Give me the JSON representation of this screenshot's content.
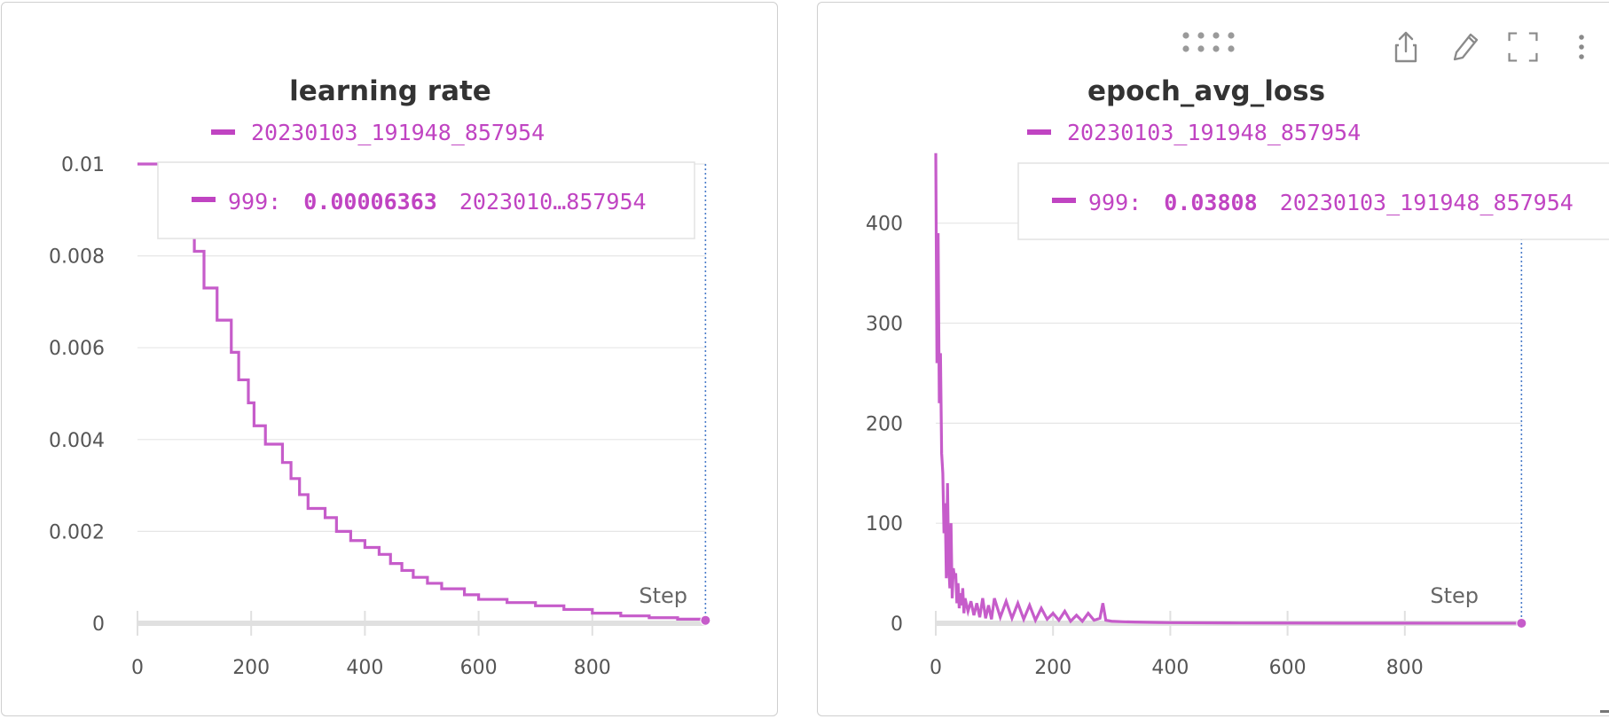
{
  "colors": {
    "series": "#c65cca",
    "legend": "#c044c2",
    "grid": "#e6e6e6",
    "axis": "#e0e0e0",
    "text": "#555555",
    "dotted": "#4a7cc9"
  },
  "icons": [
    "drag-handle-icon",
    "share-icon",
    "edit-icon",
    "fullscreen-icon",
    "more-icon",
    "resize-corner-icon"
  ],
  "panels": [
    {
      "title": "learning rate",
      "legend": "20230103_191948_857954",
      "tooltip": {
        "step": "999:",
        "value": "0.00006363",
        "run": "2023010…857954"
      },
      "step_label": "Step"
    },
    {
      "title": "epoch_avg_loss",
      "legend": "20230103_191948_857954",
      "tooltip": {
        "step": "999:",
        "value": "0.03808",
        "run": "20230103_191948_857954"
      },
      "step_label": "Step"
    }
  ],
  "chart_data": [
    {
      "type": "line",
      "title": "learning rate",
      "xlabel": "Step",
      "ylabel": "",
      "xlim": [
        0,
        1000
      ],
      "ylim": [
        0,
        0.01
      ],
      "x_ticks": [
        "0",
        "200",
        "400",
        "600",
        "800"
      ],
      "y_ticks": [
        "0",
        "0.002",
        "0.004",
        "0.006",
        "0.008",
        "0.01"
      ],
      "grid": true,
      "legend_position": "top",
      "series": [
        {
          "name": "20230103_191948_857954",
          "step_shape": true,
          "x": [
            0,
            67,
            100,
            117,
            140,
            165,
            178,
            195,
            205,
            225,
            255,
            270,
            285,
            300,
            330,
            350,
            375,
            400,
            425,
            445,
            465,
            485,
            510,
            535,
            575,
            600,
            650,
            700,
            750,
            800,
            850,
            900,
            950,
            999
          ],
          "y": [
            0.01,
            0.0092,
            0.0081,
            0.0073,
            0.0066,
            0.0059,
            0.0053,
            0.0048,
            0.0043,
            0.0039,
            0.0035,
            0.00315,
            0.0028,
            0.0025,
            0.0023,
            0.002,
            0.0018,
            0.00165,
            0.0015,
            0.0013,
            0.00115,
            0.001,
            0.00087,
            0.00075,
            0.00062,
            0.00052,
            0.00045,
            0.00038,
            0.0003,
            0.00022,
            0.00016,
            0.00012,
            9e-05,
            6.363e-05
          ]
        }
      ]
    },
    {
      "type": "line",
      "title": "epoch_avg_loss",
      "xlabel": "Step",
      "ylabel": "",
      "xlim": [
        0,
        1000
      ],
      "ylim": [
        0,
        460
      ],
      "x_ticks": [
        "0",
        "200",
        "400",
        "600",
        "800"
      ],
      "y_ticks": [
        "0",
        "100",
        "200",
        "300",
        "400"
      ],
      "grid": true,
      "legend_position": "top",
      "series": [
        {
          "name": "20230103_191948_857954",
          "x": [
            0,
            2,
            4,
            6,
            8,
            10,
            12,
            14,
            16,
            18,
            20,
            22,
            24,
            26,
            28,
            30,
            32,
            34,
            36,
            38,
            40,
            42,
            44,
            46,
            48,
            50,
            55,
            60,
            65,
            70,
            75,
            80,
            85,
            90,
            95,
            100,
            110,
            120,
            130,
            140,
            150,
            160,
            170,
            180,
            190,
            200,
            210,
            220,
            230,
            240,
            250,
            260,
            270,
            280,
            285,
            290,
            300,
            320,
            340,
            360,
            380,
            400,
            500,
            600,
            700,
            800,
            900,
            999
          ],
          "y": [
            470,
            260,
            390,
            220,
            270,
            170,
            150,
            90,
            120,
            45,
            140,
            60,
            35,
            100,
            25,
            55,
            45,
            50,
            20,
            40,
            15,
            30,
            18,
            35,
            10,
            25,
            12,
            22,
            8,
            20,
            6,
            25,
            5,
            18,
            4,
            25,
            6,
            22,
            5,
            20,
            4,
            18,
            3,
            15,
            4,
            10,
            3,
            12,
            2,
            8,
            2,
            10,
            3,
            5,
            20,
            3,
            2,
            1.5,
            1.2,
            1.0,
            0.8,
            0.6,
            0.3,
            0.2,
            0.1,
            0.08,
            0.05,
            0.03808
          ]
        }
      ]
    }
  ]
}
